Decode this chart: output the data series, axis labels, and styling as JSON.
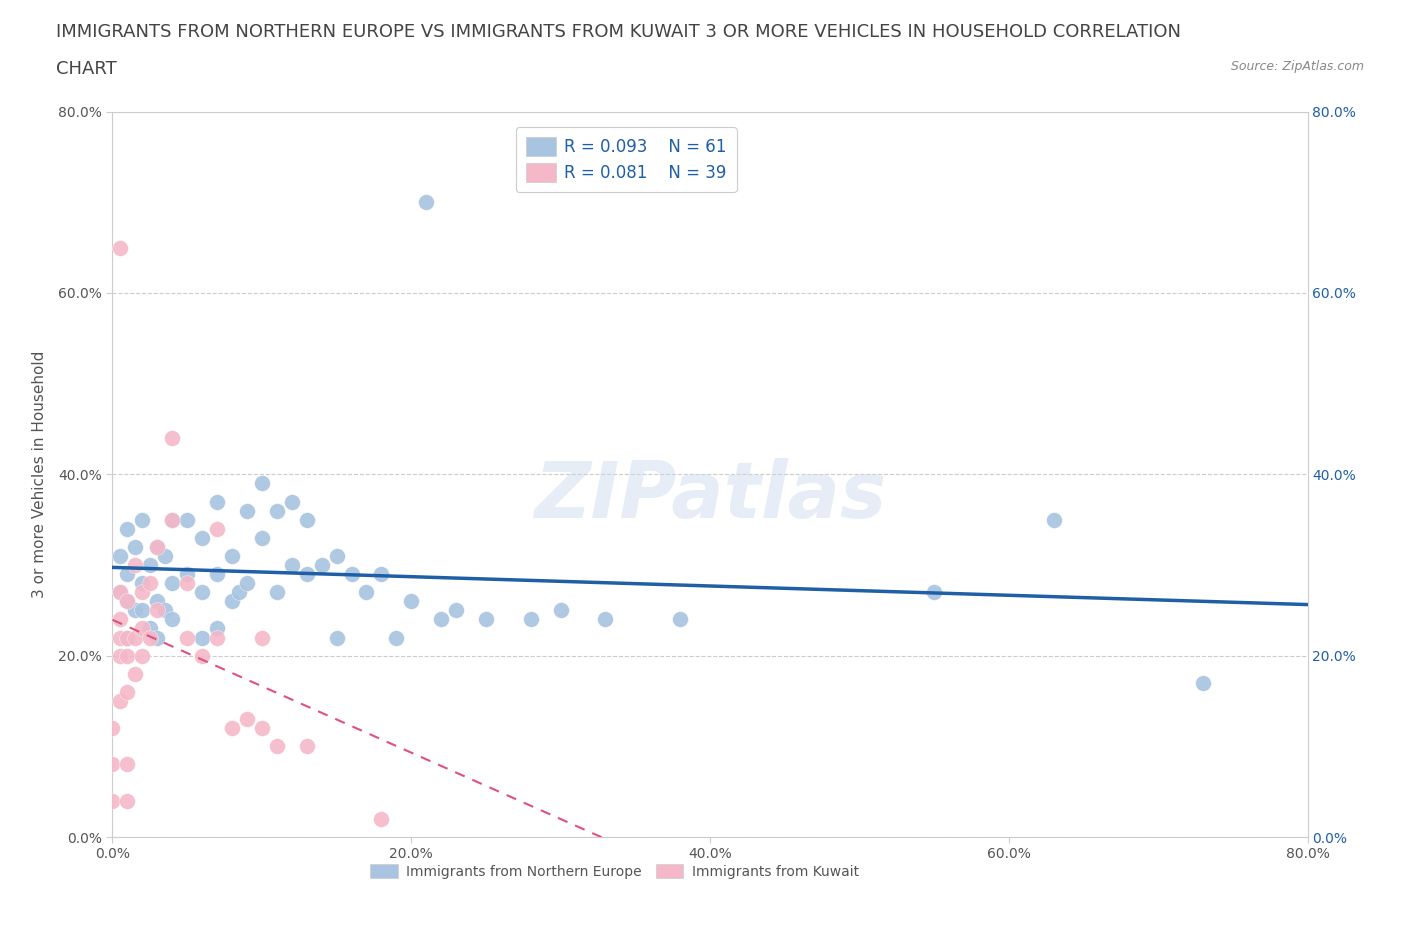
{
  "title_line1": "IMMIGRANTS FROM NORTHERN EUROPE VS IMMIGRANTS FROM KUWAIT 3 OR MORE VEHICLES IN HOUSEHOLD CORRELATION",
  "title_line2": "CHART",
  "source_text": "Source: ZipAtlas.com",
  "watermark": "ZIPatlas",
  "ylabel": "3 or more Vehicles in Household",
  "xlim": [
    0.0,
    0.8
  ],
  "ylim": [
    0.0,
    0.8
  ],
  "xticks": [
    0.0,
    0.2,
    0.4,
    0.6,
    0.8
  ],
  "yticks": [
    0.0,
    0.2,
    0.4,
    0.6,
    0.8
  ],
  "xticklabels": [
    "0.0%",
    "20.0%",
    "40.0%",
    "60.0%",
    "80.0%"
  ],
  "yticklabels": [
    "0.0%",
    "20.0%",
    "40.0%",
    "60.0%",
    "80.0%"
  ],
  "series1_label": "Immigrants from Northern Europe",
  "series1_color": "#a8c4e0",
  "series1_line_color": "#1f5fa6",
  "series1_R": 0.093,
  "series1_N": 61,
  "series2_label": "Immigrants from Kuwait",
  "series2_color": "#f4b8c8",
  "series2_line_color": "#e05080",
  "series2_R": 0.081,
  "series2_N": 39,
  "blue_x": [
    0.005,
    0.005,
    0.01,
    0.01,
    0.01,
    0.01,
    0.015,
    0.015,
    0.02,
    0.02,
    0.02,
    0.025,
    0.025,
    0.03,
    0.03,
    0.03,
    0.035,
    0.035,
    0.04,
    0.04,
    0.04,
    0.05,
    0.05,
    0.06,
    0.06,
    0.06,
    0.07,
    0.07,
    0.07,
    0.08,
    0.08,
    0.085,
    0.09,
    0.09,
    0.1,
    0.1,
    0.11,
    0.11,
    0.12,
    0.12,
    0.13,
    0.13,
    0.14,
    0.15,
    0.15,
    0.16,
    0.17,
    0.18,
    0.19,
    0.2,
    0.21,
    0.22,
    0.23,
    0.25,
    0.28,
    0.3,
    0.33,
    0.38,
    0.55,
    0.63,
    0.73
  ],
  "blue_y": [
    0.27,
    0.31,
    0.22,
    0.26,
    0.29,
    0.34,
    0.25,
    0.32,
    0.25,
    0.28,
    0.35,
    0.23,
    0.3,
    0.22,
    0.26,
    0.32,
    0.25,
    0.31,
    0.24,
    0.28,
    0.35,
    0.29,
    0.35,
    0.22,
    0.27,
    0.33,
    0.23,
    0.29,
    0.37,
    0.26,
    0.31,
    0.27,
    0.28,
    0.36,
    0.33,
    0.39,
    0.27,
    0.36,
    0.3,
    0.37,
    0.29,
    0.35,
    0.3,
    0.22,
    0.31,
    0.29,
    0.27,
    0.29,
    0.22,
    0.26,
    0.7,
    0.24,
    0.25,
    0.24,
    0.24,
    0.25,
    0.24,
    0.24,
    0.27,
    0.35,
    0.17
  ],
  "pink_x": [
    0.0,
    0.0,
    0.0,
    0.005,
    0.005,
    0.005,
    0.005,
    0.005,
    0.005,
    0.01,
    0.01,
    0.01,
    0.01,
    0.01,
    0.01,
    0.015,
    0.015,
    0.015,
    0.02,
    0.02,
    0.02,
    0.025,
    0.025,
    0.03,
    0.03,
    0.04,
    0.04,
    0.05,
    0.05,
    0.06,
    0.07,
    0.07,
    0.08,
    0.09,
    0.1,
    0.1,
    0.11,
    0.13,
    0.18
  ],
  "pink_y": [
    0.04,
    0.08,
    0.12,
    0.15,
    0.2,
    0.22,
    0.24,
    0.27,
    0.65,
    0.04,
    0.08,
    0.16,
    0.2,
    0.22,
    0.26,
    0.18,
    0.22,
    0.3,
    0.2,
    0.23,
    0.27,
    0.22,
    0.28,
    0.25,
    0.32,
    0.35,
    0.44,
    0.22,
    0.28,
    0.2,
    0.22,
    0.34,
    0.12,
    0.13,
    0.12,
    0.22,
    0.1,
    0.1,
    0.02
  ],
  "grid_color": "#cccccc",
  "background_color": "#ffffff",
  "right_tick_color": "#1f5fa6",
  "title_fontsize": 13,
  "axis_label_fontsize": 11,
  "tick_fontsize": 10
}
